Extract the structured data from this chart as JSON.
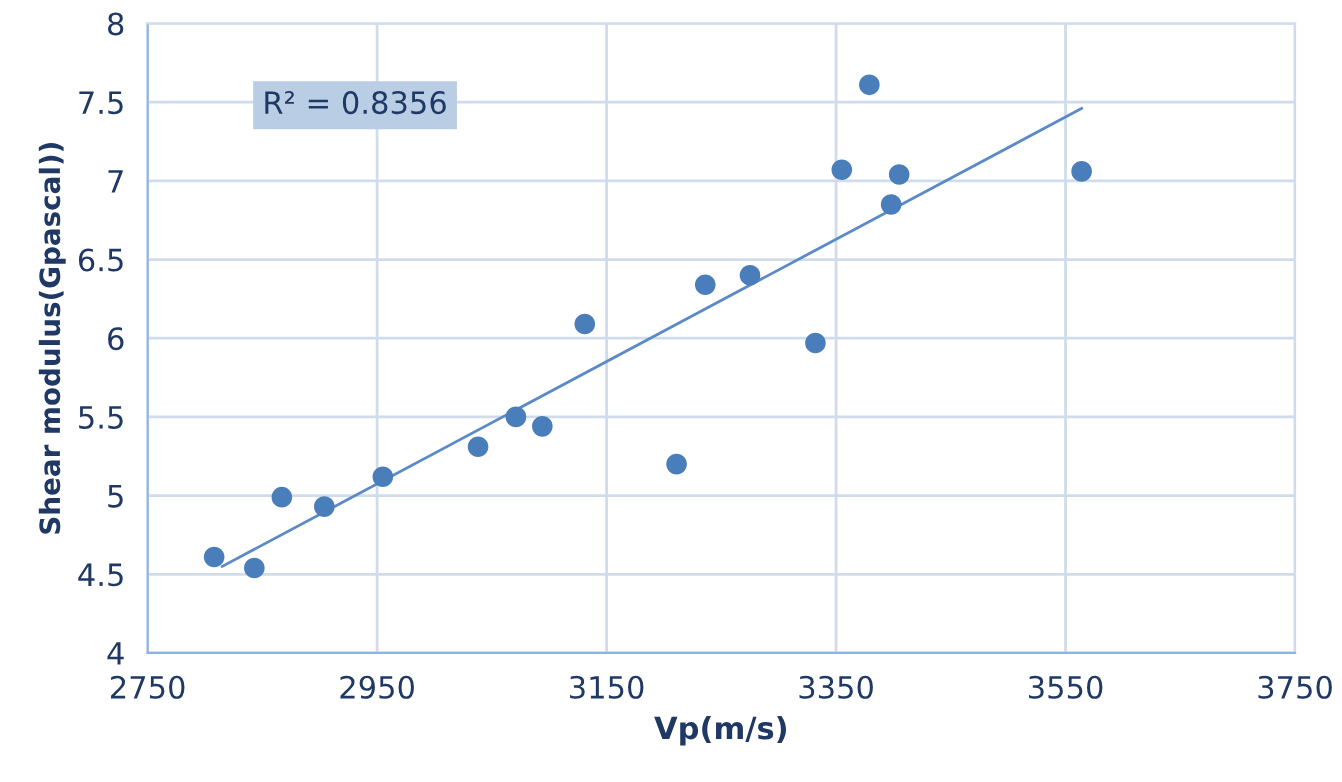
{
  "chart_data": {
    "type": "scatter",
    "xlabel": "Vp(m/s)",
    "ylabel": "Shear modulus(Gpascal))",
    "series": [
      {
        "color": "#4a7ebb",
        "marker": "circle",
        "x": [
          2808,
          2843,
          2867,
          2904,
          2955,
          3038,
          3071,
          3094,
          3131,
          3211,
          3236,
          3275,
          3332,
          3355,
          3379,
          3398,
          3405,
          3564
        ],
        "values": [
          4.61,
          4.54,
          4.99,
          4.93,
          5.12,
          5.31,
          5.5,
          5.44,
          6.09,
          5.2,
          6.34,
          6.4,
          5.97,
          7.07,
          7.61,
          6.85,
          7.04,
          7.06
        ]
      },
      {
        "type": "line",
        "color": "#5b8ac6",
        "x": [
          2815,
          3564
        ],
        "values": [
          4.55,
          7.46
        ]
      }
    ],
    "annotations": [
      "R² = 0.8356"
    ],
    "xlim": [
      2750,
      3750
    ],
    "xticks": [
      2750,
      2950,
      3150,
      3350,
      3550,
      3750
    ],
    "ylim": [
      4,
      8
    ],
    "yticks": [
      4,
      4.5,
      5,
      5.5,
      6,
      6.5,
      7,
      7.5,
      8
    ],
    "grid": true
  }
}
